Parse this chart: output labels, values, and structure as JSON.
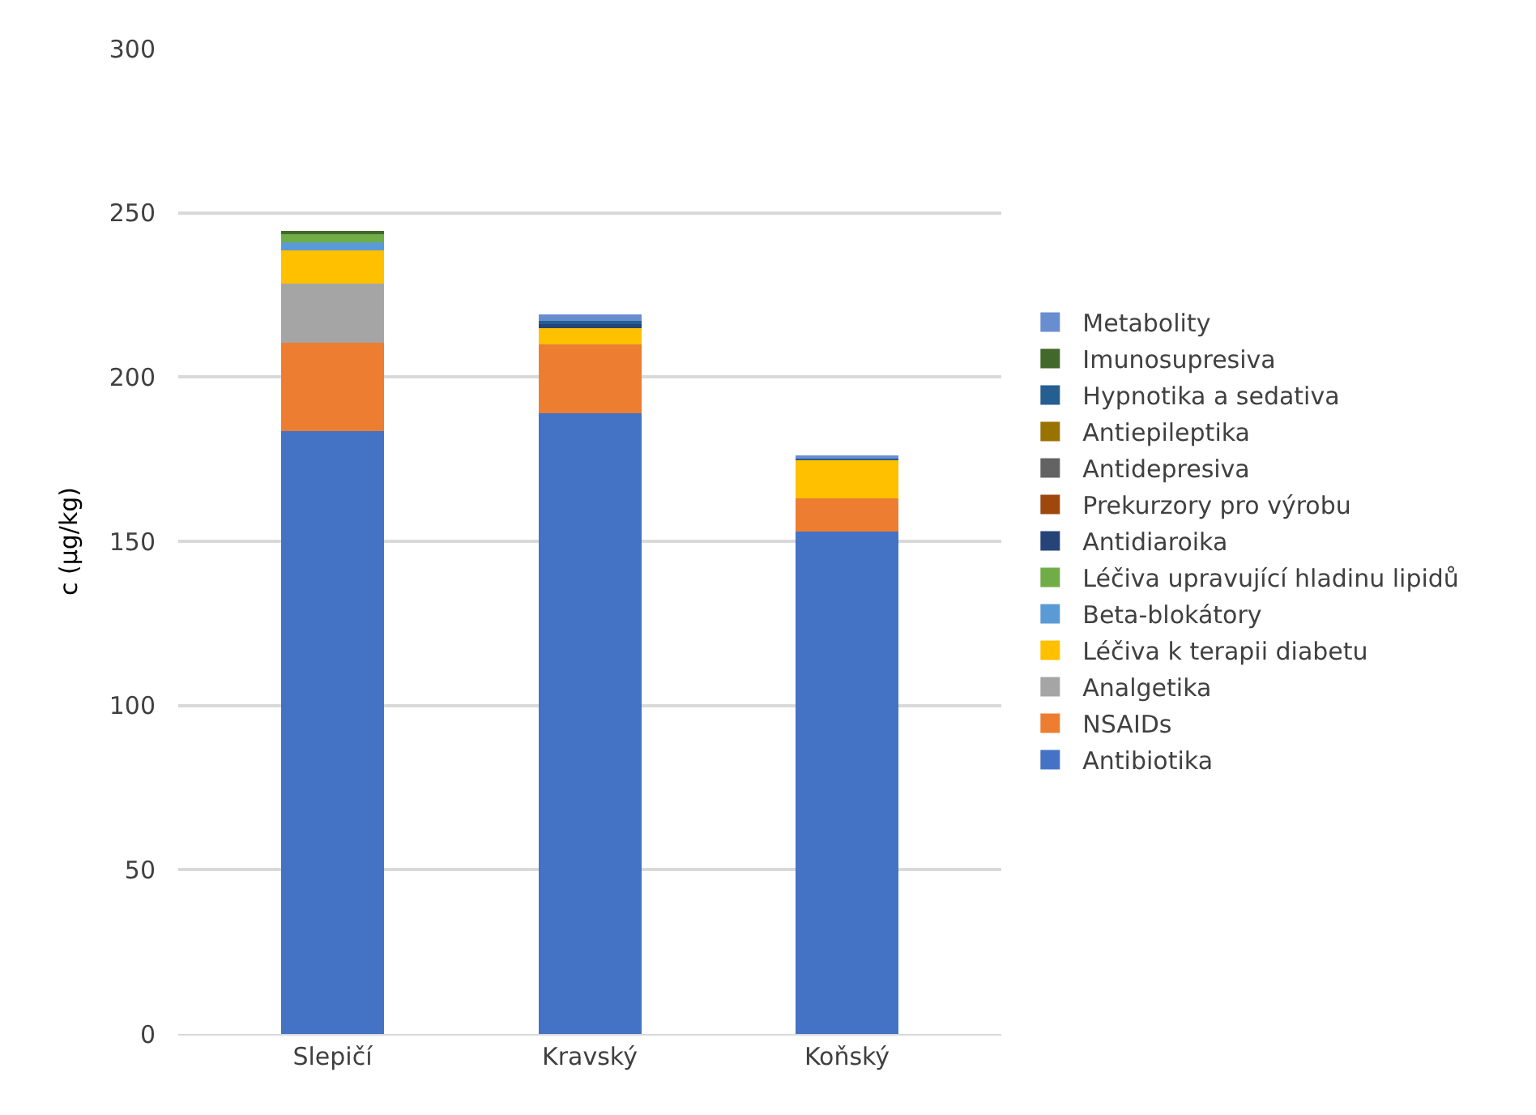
{
  "chart_data": {
    "type": "bar",
    "stacked": true,
    "ylabel": "c (µg/kg)",
    "categories": [
      "Slepičí",
      "Kravský",
      "Koňský"
    ],
    "ylim": [
      0,
      300
    ],
    "yticks": [
      0,
      50,
      100,
      150,
      200,
      250,
      300
    ],
    "grid": "y",
    "legend": "right",
    "series": [
      {
        "name": "Antibiotika",
        "color": "#4472c4",
        "values": [
          183.5,
          189,
          153
        ]
      },
      {
        "name": "NSAIDs",
        "color": "#ed7d31",
        "values": [
          27,
          21,
          10
        ]
      },
      {
        "name": "Analgetika",
        "color": "#a5a5a5",
        "values": [
          18,
          0,
          0
        ]
      },
      {
        "name": "Léčiva k terapii diabetu",
        "color": "#ffc000",
        "values": [
          10,
          5,
          12
        ]
      },
      {
        "name": "Beta-blokátory",
        "color": "#5b9bd5",
        "values": [
          2.5,
          0,
          0
        ]
      },
      {
        "name": "Léčiva upravující hladinu lipidů",
        "color": "#70ad47",
        "values": [
          2.5,
          0,
          0
        ]
      },
      {
        "name": "Antidiaroika",
        "color": "#264478",
        "values": [
          0,
          1,
          0
        ]
      },
      {
        "name": "Prekurzory pro výrobu",
        "color": "#9e480e",
        "values": [
          0,
          0,
          0
        ]
      },
      {
        "name": "Antidepresiva",
        "color": "#636363",
        "values": [
          0,
          0,
          0
        ]
      },
      {
        "name": "Antiepileptika",
        "color": "#997300",
        "values": [
          0,
          0,
          0
        ]
      },
      {
        "name": "Hypnotika a sedativa",
        "color": "#255e91",
        "values": [
          0,
          1,
          0.5
        ]
      },
      {
        "name": "Imunosupresiva",
        "color": "#43682b",
        "values": [
          1,
          0,
          0
        ]
      },
      {
        "name": "Metabolity",
        "color": "#698ed0",
        "values": [
          0,
          2,
          0.5
        ]
      }
    ]
  }
}
